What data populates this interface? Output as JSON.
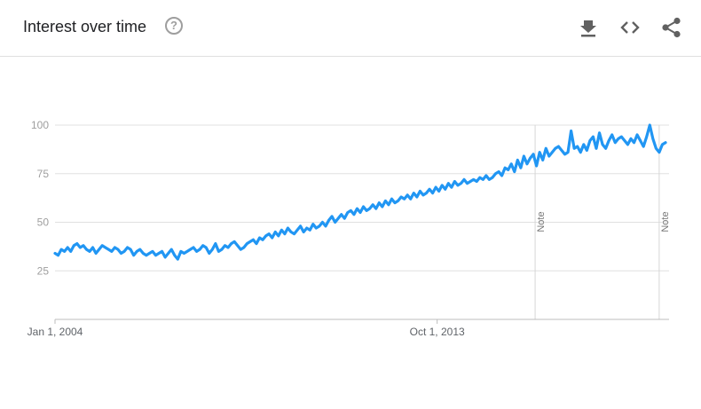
{
  "header": {
    "title": "Interest over time",
    "help_symbol": "?",
    "icons": [
      "download-icon",
      "embed-code-icon",
      "share-icon"
    ]
  },
  "chart_data": {
    "type": "line",
    "title": "Interest over time",
    "xlabel": "",
    "ylabel": "",
    "ylim": [
      0,
      100
    ],
    "yticks": [
      "25",
      "50",
      "75",
      "100"
    ],
    "xticks": [
      "Jan 1, 2004",
      "Oct 1, 2013"
    ],
    "x_start": "2004-01-01",
    "x_end": "2019-09-01",
    "grid": true,
    "line_color": "#2196f3",
    "annotations": [
      {
        "label": "Note",
        "date": "2016-04-01"
      },
      {
        "label": "Note",
        "date": "2019-06-01"
      }
    ],
    "series": [
      {
        "values": [
          34,
          33,
          36,
          35,
          37,
          35,
          38,
          39,
          37,
          38,
          36,
          35,
          37,
          34,
          36,
          38,
          37,
          36,
          35,
          37,
          36,
          34,
          35,
          37,
          36,
          33,
          35,
          36,
          34,
          33,
          34,
          35,
          33,
          34,
          35,
          32,
          34,
          36,
          33,
          31,
          35,
          34,
          35,
          36,
          37,
          35,
          36,
          38,
          37,
          34,
          36,
          39,
          35,
          36,
          38,
          37,
          39,
          40,
          38,
          36,
          37,
          39,
          40,
          41,
          39,
          42,
          41,
          43,
          44,
          42,
          45,
          43,
          46,
          44,
          47,
          45,
          44,
          46,
          48,
          45,
          47,
          46,
          49,
          47,
          48,
          50,
          48,
          51,
          53,
          50,
          52,
          54,
          52,
          55,
          56,
          54,
          57,
          55,
          58,
          56,
          57,
          59,
          57,
          60,
          58,
          61,
          59,
          62,
          60,
          61,
          63,
          62,
          64,
          62,
          65,
          63,
          66,
          64,
          65,
          67,
          65,
          68,
          66,
          69,
          67,
          70,
          68,
          71,
          69,
          70,
          72,
          70,
          71,
          72,
          71,
          73,
          72,
          74,
          72,
          73,
          75,
          76,
          74,
          78,
          77,
          80,
          76,
          82,
          78,
          84,
          80,
          83,
          85,
          79,
          86,
          82,
          88,
          84,
          86,
          88,
          89,
          87,
          85,
          86,
          97,
          88,
          89,
          86,
          90,
          87,
          92,
          94,
          88,
          96,
          90,
          88,
          92,
          95,
          91,
          93,
          94,
          92,
          90,
          93,
          91,
          95,
          92,
          89,
          94,
          100,
          93,
          88,
          86,
          90,
          91
        ]
      }
    ]
  }
}
